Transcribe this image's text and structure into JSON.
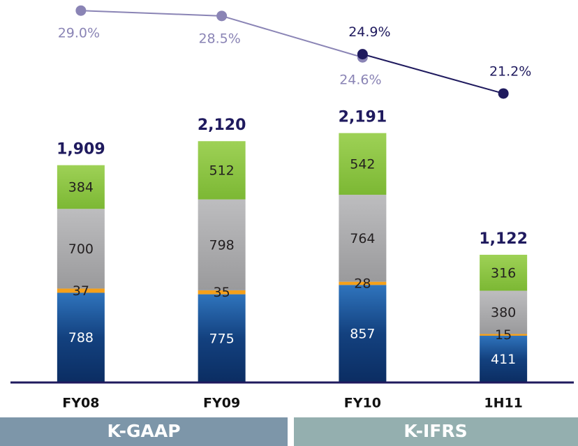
{
  "chart_data": {
    "type": "stacked_bar_line",
    "categories": [
      "FY08",
      "FY09",
      "FY10",
      "1H11"
    ],
    "series": [
      {
        "name": null,
        "color": "#12407e",
        "values": [
          788,
          775,
          857,
          411
        ]
      },
      {
        "name": null,
        "color": "#f5a01a",
        "values": [
          37,
          35,
          28,
          15
        ]
      },
      {
        "name": null,
        "color": "#a7a7a9",
        "values": [
          700,
          798,
          764,
          380
        ]
      },
      {
        "name": null,
        "color": "#8cc63f",
        "values": [
          384,
          512,
          542,
          316
        ]
      }
    ],
    "totals": [
      1909,
      2120,
      2191,
      1122
    ],
    "total_labels": [
      "1,909",
      "2,120",
      "2,191",
      "1,122"
    ],
    "lines": [
      {
        "color": "#8a84b5",
        "values": [
          29.0,
          28.5,
          24.6,
          null
        ],
        "value_labels": [
          "29.0%",
          "28.5%",
          "24.6%",
          null
        ]
      },
      {
        "color": "#1f1a5e",
        "values": [
          null,
          null,
          24.9,
          21.2
        ],
        "value_labels": [
          null,
          null,
          "24.9%",
          "21.2%"
        ]
      }
    ],
    "ylim": [
      0,
      3360
    ],
    "y2lim": [
      -6,
      30
    ],
    "groups": [
      "K-GAAP",
      "K-IFRS"
    ]
  }
}
